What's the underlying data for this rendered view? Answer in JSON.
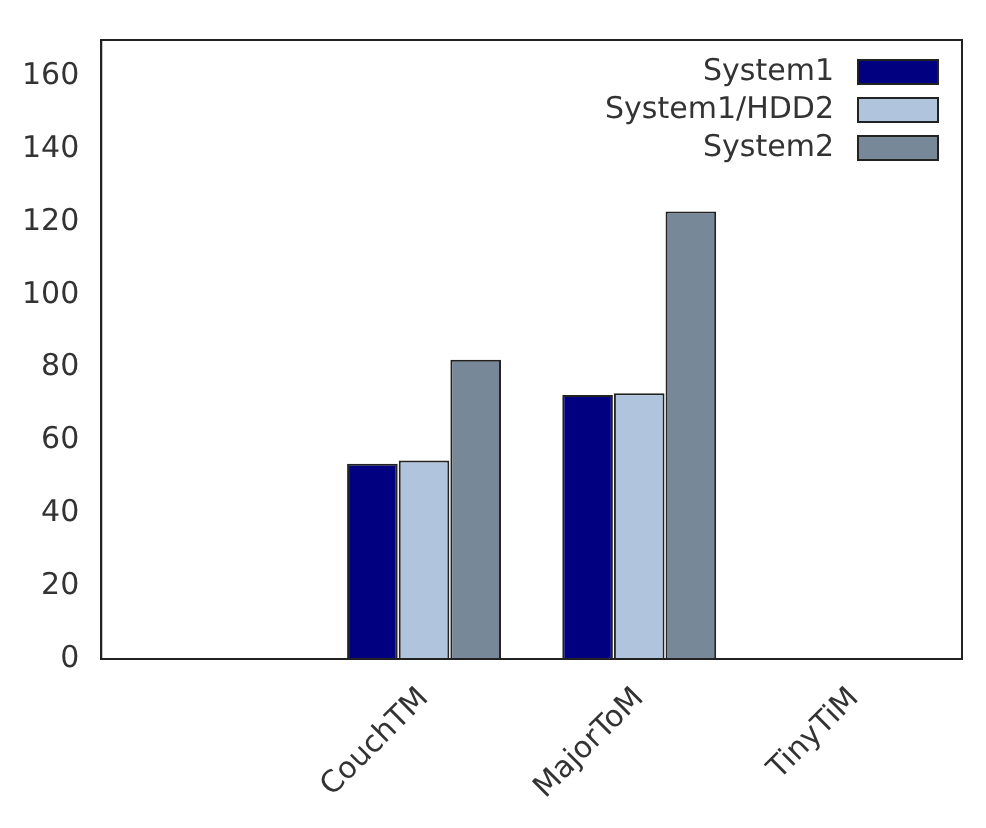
{
  "chart_data": {
    "type": "bar",
    "categories": [
      null,
      "CouchTM",
      "MajorToM",
      "TinyTiM"
    ],
    "series": [
      {
        "name": "System1",
        "color": "#000080",
        "values": [
          null,
          53.6,
          72.5,
          null
        ]
      },
      {
        "name": "System1/HDD2",
        "color": "#b0c4de",
        "values": [
          null,
          54.5,
          73,
          null
        ]
      },
      {
        "name": "System2",
        "color": "#778899",
        "values": [
          null,
          82.2,
          122.9,
          null
        ]
      }
    ],
    "ylim": [
      0,
      170
    ],
    "yticks": [
      0,
      20,
      40,
      60,
      80,
      100,
      120,
      140,
      160
    ],
    "grid": false,
    "legend": "top right"
  }
}
